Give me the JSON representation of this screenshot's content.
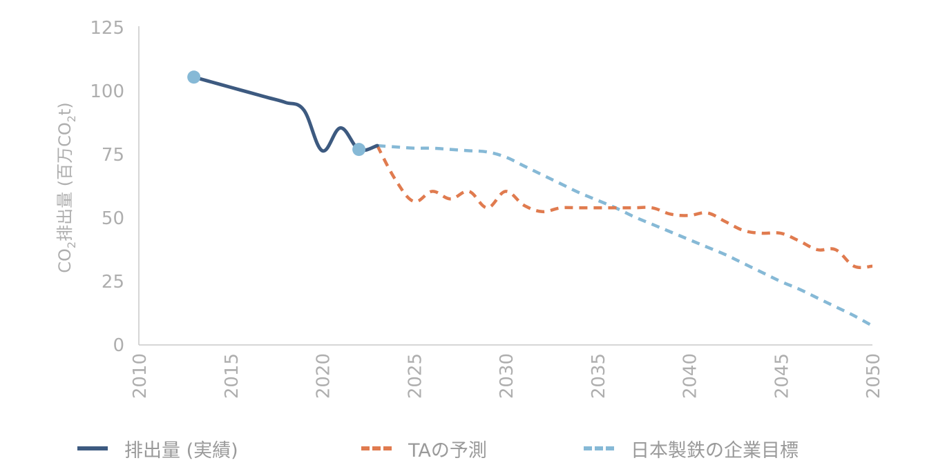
{
  "chart_data": {
    "type": "line",
    "xlabel": "",
    "ylabel": {
      "prefix": "CO",
      "prefix_sub": "2",
      "main": "排出量 (百万CO",
      "main_sub": "2",
      "suffix": "t)"
    },
    "xlim": [
      2010,
      2050
    ],
    "ylim": [
      0,
      125
    ],
    "x_ticks": [
      "2010",
      "2015",
      "2020",
      "2025",
      "2030",
      "2035",
      "2040",
      "2045",
      "2050"
    ],
    "y_ticks": [
      "0",
      "25",
      "50",
      "75",
      "100",
      "125"
    ],
    "grid": false,
    "legend_position": "bottom",
    "series": [
      {
        "name": "排出量 (実績)",
        "color": "#3d5a80",
        "style": "solid",
        "x": [
          2013,
          2014,
          2015,
          2016,
          2017,
          2018,
          2019,
          2020,
          2021,
          2022,
          2023
        ],
        "y": [
          105.5,
          103.5,
          101.5,
          99.5,
          97.5,
          95.5,
          92.5,
          76.5,
          85.5,
          77,
          78.5
        ],
        "markers": [
          {
            "x": 2013,
            "y": 105.5
          },
          {
            "x": 2022,
            "y": 77
          }
        ]
      },
      {
        "name": "TAの予測",
        "color": "#e07b4f",
        "style": "dashed",
        "x": [
          2023,
          2024,
          2025,
          2026,
          2027,
          2028,
          2029,
          2030,
          2031,
          2032,
          2033,
          2034,
          2035,
          2036,
          2037,
          2038,
          2039,
          2040,
          2041,
          2042,
          2043,
          2044,
          2045,
          2046,
          2047,
          2048,
          2049,
          2050
        ],
        "y": [
          78.5,
          65,
          56.5,
          60.5,
          57.5,
          60.5,
          54,
          60.5,
          55,
          52.5,
          54,
          54,
          54,
          54,
          54,
          54,
          51.5,
          51,
          52,
          48.5,
          45,
          44,
          44,
          41,
          37.5,
          37.5,
          31,
          31
        ]
      },
      {
        "name": "日本製鉄の企業目標",
        "color": "#86b9d6",
        "style": "dashed",
        "x": [
          2023,
          2024,
          2025,
          2026,
          2027,
          2028,
          2029,
          2030,
          2031,
          2032,
          2033,
          2034,
          2035,
          2036,
          2037,
          2038,
          2039,
          2040,
          2041,
          2042,
          2043,
          2044,
          2045,
          2046,
          2047,
          2048,
          2049,
          2050
        ],
        "y": [
          78.5,
          78,
          77.5,
          77.5,
          77,
          76.5,
          76,
          74,
          70.5,
          67,
          63.5,
          60,
          57,
          54,
          50.5,
          47.5,
          44.5,
          41.5,
          38.5,
          35.5,
          32,
          28.5,
          25,
          22,
          18.5,
          15,
          11.5,
          7.5
        ]
      }
    ]
  }
}
